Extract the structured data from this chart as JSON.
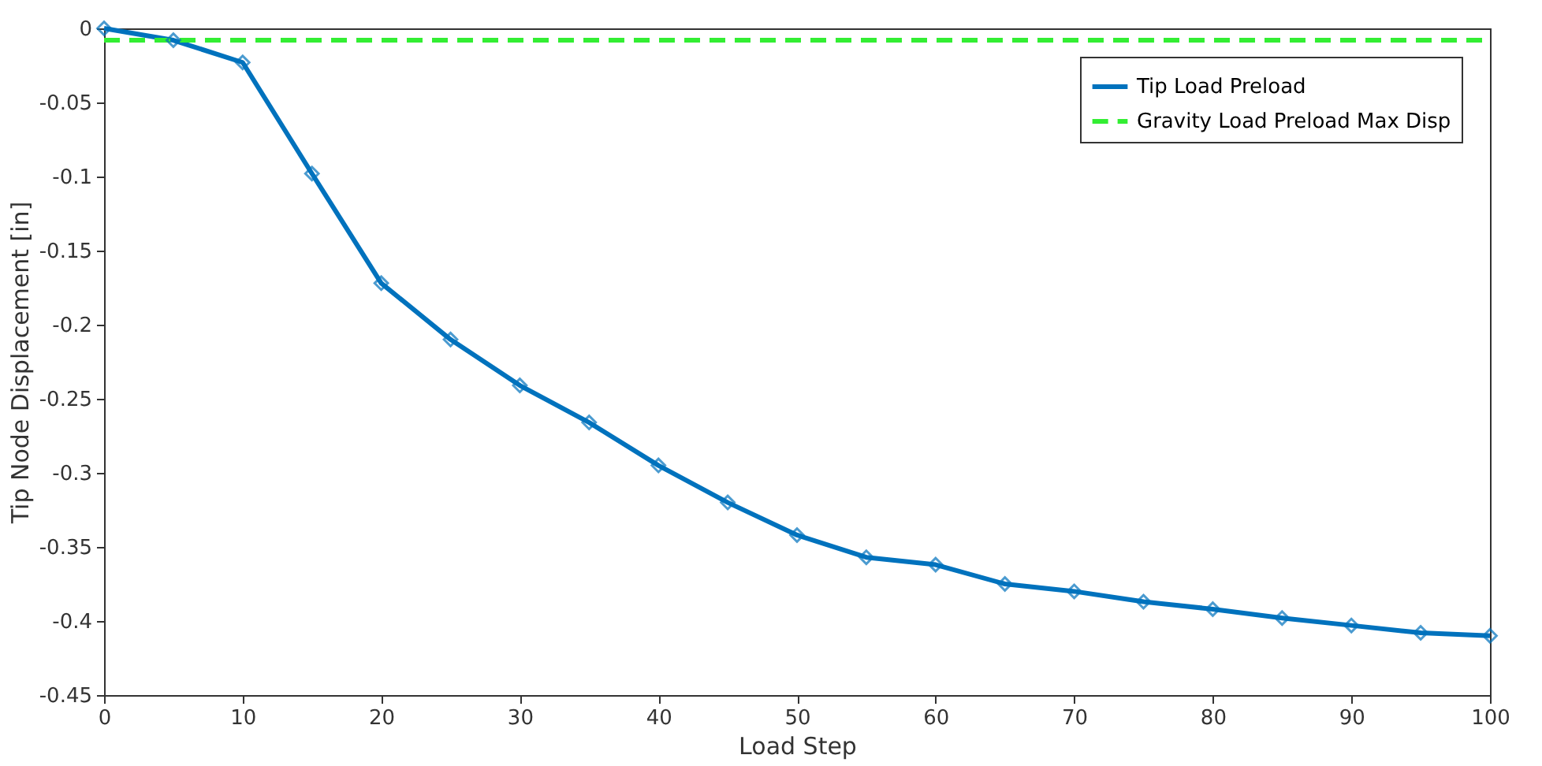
{
  "chart_data": {
    "type": "line",
    "xlabel": "Load Step",
    "ylabel": "Tip Node Displacement [in]",
    "xlim": [
      0,
      100
    ],
    "xticks": [
      0,
      10,
      20,
      30,
      40,
      50,
      60,
      70,
      80,
      90,
      100
    ],
    "ylim": [
      -0.45,
      0
    ],
    "yticks": [
      -0.45,
      -0.4,
      -0.35,
      -0.3,
      -0.25,
      -0.2,
      -0.15,
      -0.1,
      -0.05,
      0
    ],
    "grid": false,
    "legend": "top right",
    "series": [
      {
        "name": "Tip Load Preload",
        "color": "#0072bd",
        "marker": "diamond",
        "line_style": "solid",
        "x": [
          0,
          5,
          10,
          15,
          20,
          25,
          30,
          35,
          40,
          45,
          50,
          55,
          60,
          65,
          70,
          75,
          80,
          85,
          90,
          95,
          100
        ],
        "values": [
          0,
          -0.008,
          -0.023,
          -0.098,
          -0.172,
          -0.21,
          -0.241,
          -0.266,
          -0.295,
          -0.32,
          -0.342,
          -0.357,
          -0.362,
          -0.375,
          -0.38,
          -0.387,
          -0.392,
          -0.398,
          -0.403,
          -0.408,
          -0.41
        ]
      },
      {
        "name": "Gravity Load Preload Max Disp",
        "color": "#33ee33",
        "marker": "none",
        "line_style": "dashed",
        "x": [
          0,
          100
        ],
        "values": [
          -0.008,
          -0.008
        ]
      }
    ]
  }
}
